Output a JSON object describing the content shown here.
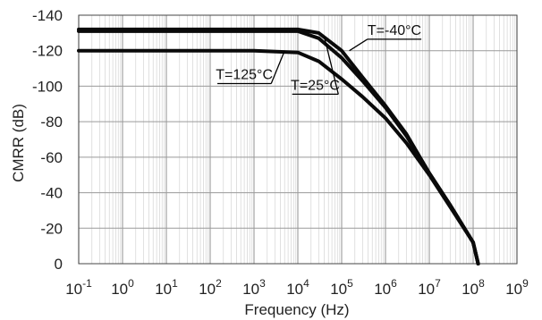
{
  "chart_data": {
    "type": "line",
    "title": "",
    "xlabel": "Frequency (Hz)",
    "ylabel": "CMRR (dB)",
    "x_scale": "log",
    "xlim": [
      0.1,
      1000000000
    ],
    "ylim": [
      0,
      -140
    ],
    "y_axis_note": "values become more negative upward",
    "grid": true,
    "x_ticks": [
      {
        "base": "10",
        "exp": "-1"
      },
      {
        "base": "10",
        "exp": "0"
      },
      {
        "base": "10",
        "exp": "1"
      },
      {
        "base": "10",
        "exp": "2"
      },
      {
        "base": "10",
        "exp": "3"
      },
      {
        "base": "10",
        "exp": "4"
      },
      {
        "base": "10",
        "exp": "5"
      },
      {
        "base": "10",
        "exp": "6"
      },
      {
        "base": "10",
        "exp": "7"
      },
      {
        "base": "10",
        "exp": "8"
      },
      {
        "base": "10",
        "exp": "9"
      }
    ],
    "y_ticks": [
      "-140",
      "-120",
      "-100",
      "-80",
      "-60",
      "-40",
      "-20",
      "0"
    ],
    "y_tick_values": [
      -140,
      -120,
      -100,
      -80,
      -60,
      -40,
      -20,
      0
    ],
    "series": [
      {
        "name": "T=-40°C",
        "x": [
          0.1,
          10,
          1000,
          10000,
          30000,
          100000,
          300000,
          1000000,
          3000000,
          10000000,
          30000000,
          100000000,
          130000000
        ],
        "y": [
          -132,
          -132,
          -132,
          -132,
          -130,
          -120,
          -105,
          -89,
          -73,
          -51,
          -33,
          -12,
          0
        ]
      },
      {
        "name": "T=25°C",
        "x": [
          0.1,
          10,
          1000,
          10000,
          30000,
          100000,
          300000,
          1000000,
          3000000,
          10000000,
          30000000,
          100000000,
          130000000
        ],
        "y": [
          -131,
          -131,
          -131,
          -131,
          -127,
          -116,
          -103,
          -88,
          -72,
          -51,
          -33,
          -12,
          0
        ]
      },
      {
        "name": "T=125°C",
        "x": [
          0.1,
          10,
          1000,
          10000,
          30000,
          100000,
          300000,
          1000000,
          3000000,
          10000000,
          30000000,
          100000000,
          130000000
        ],
        "y": [
          -120,
          -120,
          -120,
          -119,
          -114,
          -104,
          -94,
          -82,
          -68,
          -50,
          -32,
          -12,
          0
        ]
      }
    ],
    "series_labels": [
      {
        "text": "T=-40°C",
        "at_x": 1600000,
        "at_y": -129
      },
      {
        "text": "T=25°C",
        "at_x": 25000,
        "at_y": -98
      },
      {
        "text": "T=125°C",
        "at_x": 600,
        "at_y": -104
      }
    ],
    "leader_lines": [
      {
        "series": "T=-40°C",
        "to_x": 150000,
        "to_y": -120
      },
      {
        "series": "T=25°C",
        "to_x": 40000,
        "to_y": -128
      },
      {
        "series": "T=125°C",
        "to_x": 5000,
        "to_y": -120
      }
    ],
    "colors": {
      "line": "#0a0a0a",
      "major_grid": "#9a9a9a",
      "minor_grid": "#d9d9d9",
      "axis": "#444444"
    }
  }
}
